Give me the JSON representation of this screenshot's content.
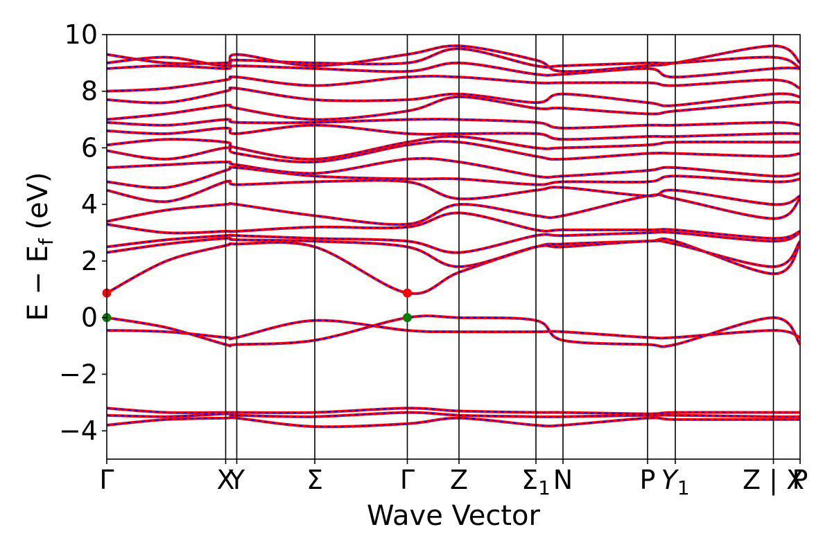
{
  "chart_data": {
    "type": "line",
    "title": "",
    "xlabel": "Wave Vector",
    "ylabel": "E − E",
    "ylabel_sub": "f",
    "ylabel_unit": " (eV)",
    "ylim": [
      -5,
      10
    ],
    "yticks": [
      {
        "value": -4,
        "label": "−4"
      },
      {
        "value": -2,
        "label": "−2"
      },
      {
        "value": 0,
        "label": "0"
      },
      {
        "value": 2,
        "label": "2"
      },
      {
        "value": 4,
        "label": "4"
      },
      {
        "value": 6,
        "label": "6"
      },
      {
        "value": 8,
        "label": "8"
      },
      {
        "value": 10,
        "label": "10"
      }
    ],
    "xlim": [
      0,
      10
    ],
    "kpoints": [
      {
        "x": 0.0,
        "label": "Γ",
        "sub": ""
      },
      {
        "x": 1.715,
        "label": "X",
        "sub": ""
      },
      {
        "x": 1.875,
        "label": "Y",
        "sub": ""
      },
      {
        "x": 3.0,
        "label": "Σ",
        "sub": ""
      },
      {
        "x": 4.335,
        "label": "Γ",
        "sub": ""
      },
      {
        "x": 5.08,
        "label": "Z",
        "sub": ""
      },
      {
        "x": 6.19,
        "label": "Σ",
        "sub": "1"
      },
      {
        "x": 6.58,
        "label": "N",
        "sub": ""
      },
      {
        "x": 7.8,
        "label": "P",
        "sub": ""
      },
      {
        "x": 8.2,
        "label": "Y",
        "sub": "1",
        "italic": true
      },
      {
        "x": 9.615,
        "label": "Z | X",
        "sub": ""
      },
      {
        "x": 10.0,
        "label": "P",
        "sub": ""
      }
    ],
    "band_colors": {
      "solid": "#ff0000",
      "dashed": "#0000ff"
    },
    "markers": [
      {
        "x": 0.0,
        "y": 0.87,
        "color": "#ff0000",
        "role": "conduction band minimum"
      },
      {
        "x": 4.335,
        "y": 0.87,
        "color": "#ff0000",
        "role": "conduction band minimum"
      },
      {
        "x": 0.0,
        "y": 0.0,
        "color": "#008000",
        "role": "valence band maximum"
      },
      {
        "x": 4.335,
        "y": 0.0,
        "color": "#008000",
        "role": "valence band maximum"
      }
    ],
    "series": [
      {
        "x": [
          0,
          0.86,
          1.715,
          1.875,
          3.0,
          4.335,
          5.08,
          6.19,
          6.58,
          7.8,
          8.2,
          9.615,
          10.0
        ],
        "y": [
          -3.8,
          -3.6,
          -3.55,
          -3.55,
          -3.85,
          -3.75,
          -3.55,
          -3.8,
          -3.8,
          -3.55,
          -3.6,
          -3.6,
          -3.6
        ]
      },
      {
        "x": [
          0,
          0.86,
          1.715,
          1.875,
          3.0,
          4.335,
          5.08,
          6.19,
          6.58,
          7.8,
          8.2,
          9.615,
          10.0
        ],
        "y": [
          -3.45,
          -3.5,
          -3.4,
          -3.45,
          -3.5,
          -3.35,
          -3.45,
          -3.5,
          -3.5,
          -3.45,
          -3.45,
          -3.5,
          -3.5
        ]
      },
      {
        "x": [
          0,
          0.86,
          1.715,
          1.875,
          3.0,
          4.335,
          5.08,
          6.19,
          6.58,
          7.8,
          8.2,
          9.615,
          10.0
        ],
        "y": [
          -3.2,
          -3.35,
          -3.35,
          -3.35,
          -3.35,
          -3.2,
          -3.3,
          -3.35,
          -3.35,
          -3.4,
          -3.35,
          -3.35,
          -3.35
        ]
      },
      {
        "x": [
          0,
          0.86,
          1.715,
          1.875,
          3.0,
          4.335,
          5.08,
          6.19,
          6.58,
          7.8,
          8.2,
          9.615,
          10.0
        ],
        "y": [
          -0.45,
          -0.5,
          -0.7,
          -0.7,
          -0.1,
          -0.45,
          -0.5,
          -0.5,
          -0.5,
          -0.7,
          -0.7,
          -0.45,
          -0.7
        ]
      },
      {
        "x": [
          0,
          0.86,
          1.715,
          1.875,
          3.0,
          4.335,
          5.08,
          6.19,
          6.58,
          7.8,
          8.2,
          9.615,
          10.0
        ],
        "y": [
          0.0,
          -0.35,
          -0.95,
          -0.95,
          -0.8,
          0.0,
          0.0,
          -0.1,
          -0.8,
          -0.95,
          -0.95,
          0.0,
          -0.95
        ]
      },
      {
        "x": [
          0,
          0.86,
          1.715,
          1.875,
          3.0,
          4.335,
          5.08,
          6.19,
          6.58,
          7.8,
          8.2,
          9.615,
          10.0
        ],
        "y": [
          0.87,
          2.0,
          2.55,
          2.6,
          2.5,
          0.87,
          1.6,
          2.5,
          2.6,
          2.7,
          2.7,
          1.55,
          2.6
        ]
      },
      {
        "x": [
          0,
          0.86,
          1.715,
          1.875,
          3.0,
          4.335,
          5.08,
          6.19,
          6.58,
          7.8,
          8.2,
          9.615,
          10.0
        ],
        "y": [
          2.3,
          2.6,
          2.8,
          2.75,
          2.7,
          2.5,
          1.8,
          2.5,
          2.5,
          2.7,
          2.6,
          1.8,
          2.7
        ]
      },
      {
        "x": [
          0,
          0.86,
          1.715,
          1.875,
          3.0,
          4.335,
          5.08,
          6.19,
          6.58,
          7.8,
          8.2,
          9.615,
          10.0
        ],
        "y": [
          2.5,
          2.75,
          2.9,
          2.9,
          2.8,
          2.7,
          2.3,
          2.9,
          2.9,
          3.0,
          3.0,
          2.7,
          3.0
        ]
      },
      {
        "x": [
          0,
          0.86,
          1.715,
          1.875,
          3.0,
          4.335,
          5.08,
          6.19,
          6.58,
          7.8,
          8.2,
          9.615,
          10.0
        ],
        "y": [
          3.3,
          3.0,
          3.05,
          3.05,
          3.2,
          3.2,
          3.7,
          3.1,
          3.1,
          3.1,
          3.1,
          2.8,
          3.05
        ]
      },
      {
        "x": [
          0,
          0.86,
          1.715,
          1.875,
          3.0,
          4.335,
          5.08,
          6.19,
          6.58,
          7.8,
          8.2,
          9.615,
          10.0
        ],
        "y": [
          3.4,
          3.8,
          4.0,
          4.0,
          3.6,
          3.3,
          4.0,
          3.6,
          3.6,
          4.3,
          4.2,
          3.5,
          4.2
        ]
      },
      {
        "x": [
          0,
          0.86,
          1.715,
          1.875,
          3.0,
          4.335,
          5.08,
          6.19,
          6.58,
          7.8,
          8.2,
          9.615,
          10.0
        ],
        "y": [
          4.5,
          4.1,
          4.8,
          4.7,
          4.8,
          4.8,
          4.2,
          4.5,
          4.6,
          4.3,
          4.5,
          4.0,
          4.3
        ]
      },
      {
        "x": [
          0,
          0.86,
          1.715,
          1.875,
          3.0,
          4.335,
          5.08,
          6.19,
          6.58,
          7.8,
          8.2,
          9.615,
          10.0
        ],
        "y": [
          4.8,
          4.6,
          5.2,
          5.3,
          5.0,
          4.9,
          4.9,
          4.7,
          4.8,
          4.8,
          5.0,
          4.8,
          4.9
        ]
      },
      {
        "x": [
          0,
          0.86,
          1.715,
          1.875,
          3.0,
          4.335,
          5.08,
          6.19,
          6.58,
          7.8,
          8.2,
          9.615,
          10.0
        ],
        "y": [
          5.3,
          5.4,
          5.5,
          5.4,
          5.1,
          5.6,
          5.5,
          5.0,
          5.0,
          5.2,
          5.3,
          5.0,
          5.1
        ]
      },
      {
        "x": [
          0,
          0.86,
          1.715,
          1.875,
          3.0,
          4.335,
          5.08,
          6.19,
          6.58,
          7.8,
          8.2,
          9.615,
          10.0
        ],
        "y": [
          5.9,
          5.6,
          6.0,
          5.8,
          5.5,
          6.1,
          6.2,
          5.7,
          5.6,
          5.8,
          5.8,
          5.7,
          5.8
        ]
      },
      {
        "x": [
          0,
          0.86,
          1.715,
          1.875,
          3.0,
          4.335,
          5.08,
          6.19,
          6.58,
          7.8,
          8.2,
          9.615,
          10.0
        ],
        "y": [
          6.1,
          6.3,
          6.2,
          6.0,
          5.6,
          6.2,
          6.4,
          6.0,
          6.0,
          6.1,
          6.2,
          6.2,
          6.2
        ]
      },
      {
        "x": [
          0,
          0.86,
          1.715,
          1.875,
          3.0,
          4.335,
          5.08,
          6.19,
          6.58,
          7.8,
          8.2,
          9.615,
          10.0
        ],
        "y": [
          6.6,
          6.5,
          6.7,
          6.5,
          6.8,
          6.5,
          6.5,
          6.5,
          6.3,
          6.4,
          6.4,
          6.5,
          6.5
        ]
      },
      {
        "x": [
          0,
          0.86,
          1.715,
          1.875,
          3.0,
          4.335,
          5.08,
          6.19,
          6.58,
          7.8,
          8.2,
          9.615,
          10.0
        ],
        "y": [
          6.9,
          6.8,
          7.0,
          6.9,
          6.9,
          7.0,
          7.0,
          6.9,
          6.7,
          6.8,
          6.8,
          6.9,
          6.8
        ]
      },
      {
        "x": [
          0,
          0.86,
          1.715,
          1.875,
          3.0,
          4.335,
          5.08,
          6.19,
          6.58,
          7.8,
          8.2,
          9.615,
          10.0
        ],
        "y": [
          7.0,
          7.2,
          7.5,
          7.4,
          7.0,
          7.3,
          7.8,
          7.4,
          7.4,
          7.2,
          7.3,
          7.6,
          7.6
        ]
      },
      {
        "x": [
          0,
          0.86,
          1.715,
          1.875,
          3.0,
          4.335,
          5.08,
          6.19,
          6.58,
          7.8,
          8.2,
          9.615,
          10.0
        ],
        "y": [
          7.7,
          7.6,
          8.0,
          8.1,
          7.7,
          7.7,
          7.9,
          7.6,
          7.9,
          7.6,
          7.5,
          7.9,
          7.8
        ]
      },
      {
        "x": [
          0,
          0.86,
          1.715,
          1.875,
          3.0,
          4.335,
          5.08,
          6.19,
          6.58,
          7.8,
          8.2,
          9.615,
          10.0
        ],
        "y": [
          8.0,
          8.1,
          8.4,
          8.5,
          8.2,
          8.5,
          8.5,
          8.3,
          8.3,
          8.3,
          8.2,
          8.4,
          8.1
        ]
      },
      {
        "x": [
          0,
          0.86,
          1.715,
          1.875,
          3.0,
          4.335,
          5.08,
          6.19,
          6.58,
          7.8,
          8.2,
          9.615,
          10.0
        ],
        "y": [
          8.8,
          8.9,
          8.8,
          8.9,
          8.8,
          8.7,
          9.0,
          8.6,
          8.6,
          8.8,
          8.5,
          8.8,
          8.8
        ]
      },
      {
        "x": [
          0,
          0.86,
          1.715,
          1.875,
          3.0,
          4.335,
          5.08,
          6.19,
          6.58,
          7.8,
          8.2,
          9.615,
          10.0
        ],
        "y": [
          9.0,
          9.2,
          8.9,
          9.3,
          8.9,
          9.3,
          9.6,
          9.1,
          8.7,
          8.9,
          9.0,
          9.6,
          9.0
        ]
      },
      {
        "x": [
          0,
          0.86,
          1.715,
          1.875,
          3.0,
          4.335,
          5.08,
          6.19,
          6.58,
          7.8,
          8.2,
          9.615,
          10.0
        ],
        "y": [
          9.3,
          9.0,
          9.0,
          9.1,
          9.0,
          9.0,
          9.5,
          8.9,
          8.9,
          9.0,
          9.0,
          9.2,
          8.8
        ]
      }
    ]
  }
}
